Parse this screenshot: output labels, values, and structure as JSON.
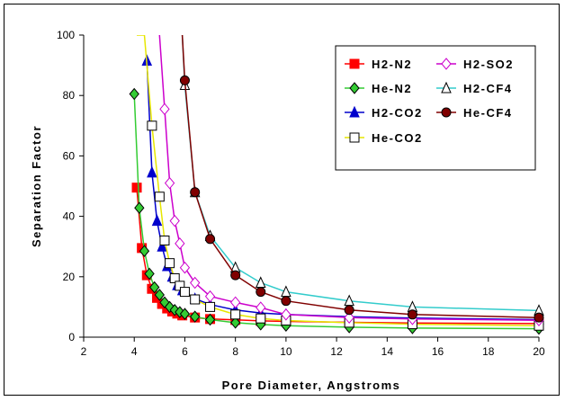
{
  "chart_data": {
    "type": "line",
    "xlabel": "Pore Diameter, Angstroms",
    "ylabel": "Separation Factor",
    "xlim": [
      2,
      20
    ],
    "ylim": [
      0,
      100
    ],
    "xticks": [
      2,
      4,
      6,
      8,
      10,
      12,
      14,
      16,
      18,
      20
    ],
    "yticks": [
      0,
      20,
      40,
      60,
      80,
      100
    ],
    "grid": false,
    "legend_position": "top-right",
    "series": [
      {
        "name": "H2-N2",
        "color": "#ff0000",
        "marker": "square-filled",
        "x": [
          4.1,
          4.3,
          4.5,
          4.7,
          4.9,
          5.1,
          5.3,
          5.5,
          5.7,
          5.9,
          6.4,
          7.0,
          8.0,
          9.0,
          10.0,
          12.5,
          15.0,
          20.0
        ],
        "y": [
          49.5,
          29.5,
          20.5,
          16,
          13,
          11,
          9.5,
          8.5,
          7.8,
          7.2,
          6.5,
          6.0,
          5.7,
          5.4,
          5.2,
          4.9,
          4.7,
          4.5
        ]
      },
      {
        "name": "He-N2",
        "color": "#33cc33",
        "marker": "diamond-filled",
        "x": [
          4.0,
          4.2,
          4.4,
          4.6,
          4.8,
          5.0,
          5.2,
          5.4,
          5.6,
          5.8,
          6.0,
          6.4,
          7.0,
          8.0,
          9.0,
          10.0,
          12.5,
          15.0,
          20.0
        ],
        "y": [
          80.5,
          42.8,
          28.5,
          21,
          16.5,
          14,
          11.5,
          10,
          9,
          8.3,
          7.7,
          6.8,
          5.8,
          4.8,
          4.2,
          3.8,
          3.3,
          3.0,
          2.8
        ]
      },
      {
        "name": "H2-CO2",
        "color": "#0000cc",
        "marker": "triangle-filled",
        "x": [
          4.5,
          4.7,
          4.9,
          5.1,
          5.3,
          5.5,
          5.7,
          5.9,
          6.4,
          7.0,
          8.0,
          9.0,
          10.0,
          12.5,
          15.0,
          20.0
        ],
        "y": [
          91.5,
          54.5,
          38.5,
          30,
          23.5,
          20,
          17.2,
          15.5,
          12.7,
          10.8,
          9.0,
          8.0,
          7.5,
          6.8,
          6.3,
          5.8
        ]
      },
      {
        "name": "He-CO2",
        "color": "#e6e600",
        "marker": "square-open",
        "x": [
          4.1,
          4.4,
          4.7,
          5.0,
          5.2,
          5.4,
          5.6,
          5.8,
          6.0,
          6.4,
          7.0,
          8.0,
          9.0,
          10.0,
          12.5,
          15.0,
          20.0
        ],
        "y": [
          100,
          100,
          70,
          46.5,
          32,
          24.5,
          19.5,
          17,
          15,
          12.5,
          10,
          7.5,
          6.2,
          5.5,
          4.8,
          4.3,
          3.8
        ]
      },
      {
        "name": "H2-SO2",
        "color": "#cc00cc",
        "marker": "diamond-open",
        "x": [
          5.0,
          5.2,
          5.4,
          5.6,
          5.8,
          6.0,
          6.4,
          7.0,
          8.0,
          9.0,
          10.0,
          12.5,
          15.0,
          20.0
        ],
        "y": [
          100,
          75.5,
          51,
          38.5,
          31,
          23,
          18,
          13.5,
          11.5,
          9.8,
          7.5,
          6.5,
          6.0,
          5.6
        ]
      },
      {
        "name": "H2-CF4",
        "color": "#33cccc",
        "marker": "triangle-open",
        "x": [
          5.9,
          6.0,
          6.4,
          7.0,
          8.0,
          9.0,
          10.0,
          12.5,
          15.0,
          20.0
        ],
        "y": [
          100,
          83.5,
          48,
          33.5,
          23,
          18,
          15,
          12,
          10,
          8.8
        ]
      },
      {
        "name": "He-CF4",
        "color": "#800000",
        "marker": "circle-filled",
        "x": [
          5.9,
          6.0,
          6.4,
          7.0,
          8.0,
          9.0,
          10.0,
          12.5,
          15.0,
          20.0
        ],
        "y": [
          100,
          85,
          48,
          32.5,
          20.5,
          15,
          12,
          9,
          7.5,
          6.5
        ]
      }
    ]
  }
}
